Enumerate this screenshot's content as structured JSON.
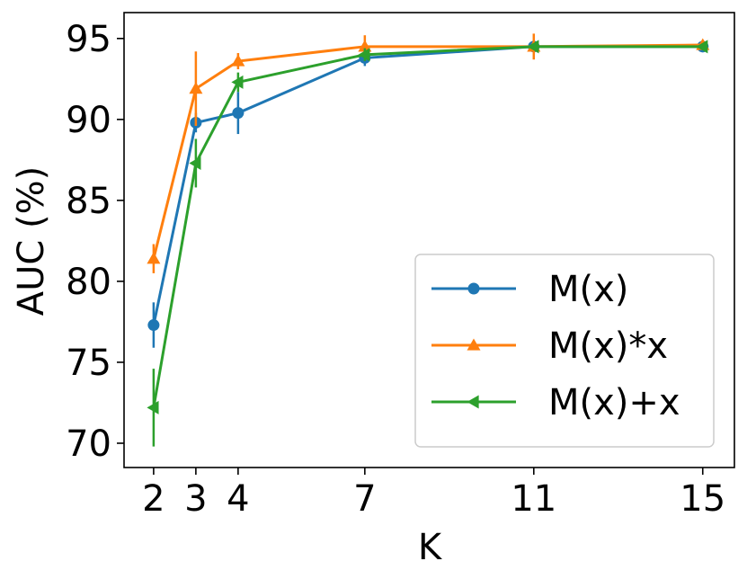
{
  "chart_data": {
    "type": "line",
    "title": "",
    "xlabel": "K",
    "ylabel": "AUC (%)",
    "x": [
      2,
      3,
      4,
      7,
      11,
      15
    ],
    "xticks": [
      "2",
      "3",
      "4",
      "7",
      "11",
      "15"
    ],
    "yticks": [
      "70",
      "75",
      "80",
      "85",
      "90",
      "95"
    ],
    "xlim": [
      1.3,
      15.75
    ],
    "ylim": [
      68.5,
      96.6
    ],
    "grid": false,
    "legend_position": "lower right",
    "series": [
      {
        "name": "M(x)",
        "color": "#1f77b4",
        "marker": "circle",
        "values": [
          77.3,
          89.8,
          90.4,
          93.8,
          94.5,
          94.5
        ],
        "err": [
          1.4,
          0.6,
          1.3,
          0.5,
          0.3,
          0.2
        ]
      },
      {
        "name": "M(x)*x",
        "color": "#ff7f0e",
        "marker": "triangle-up",
        "values": [
          81.4,
          91.9,
          93.6,
          94.5,
          94.5,
          94.6
        ],
        "err": [
          0.9,
          2.3,
          0.5,
          0.7,
          0.8,
          0.2
        ]
      },
      {
        "name": "M(x)+x",
        "color": "#2ca02c",
        "marker": "triangle-left",
        "values": [
          72.2,
          87.3,
          92.3,
          94.0,
          94.5,
          94.5
        ],
        "err": [
          2.4,
          1.5,
          0.6,
          0.4,
          0.2,
          0.2
        ]
      }
    ]
  }
}
